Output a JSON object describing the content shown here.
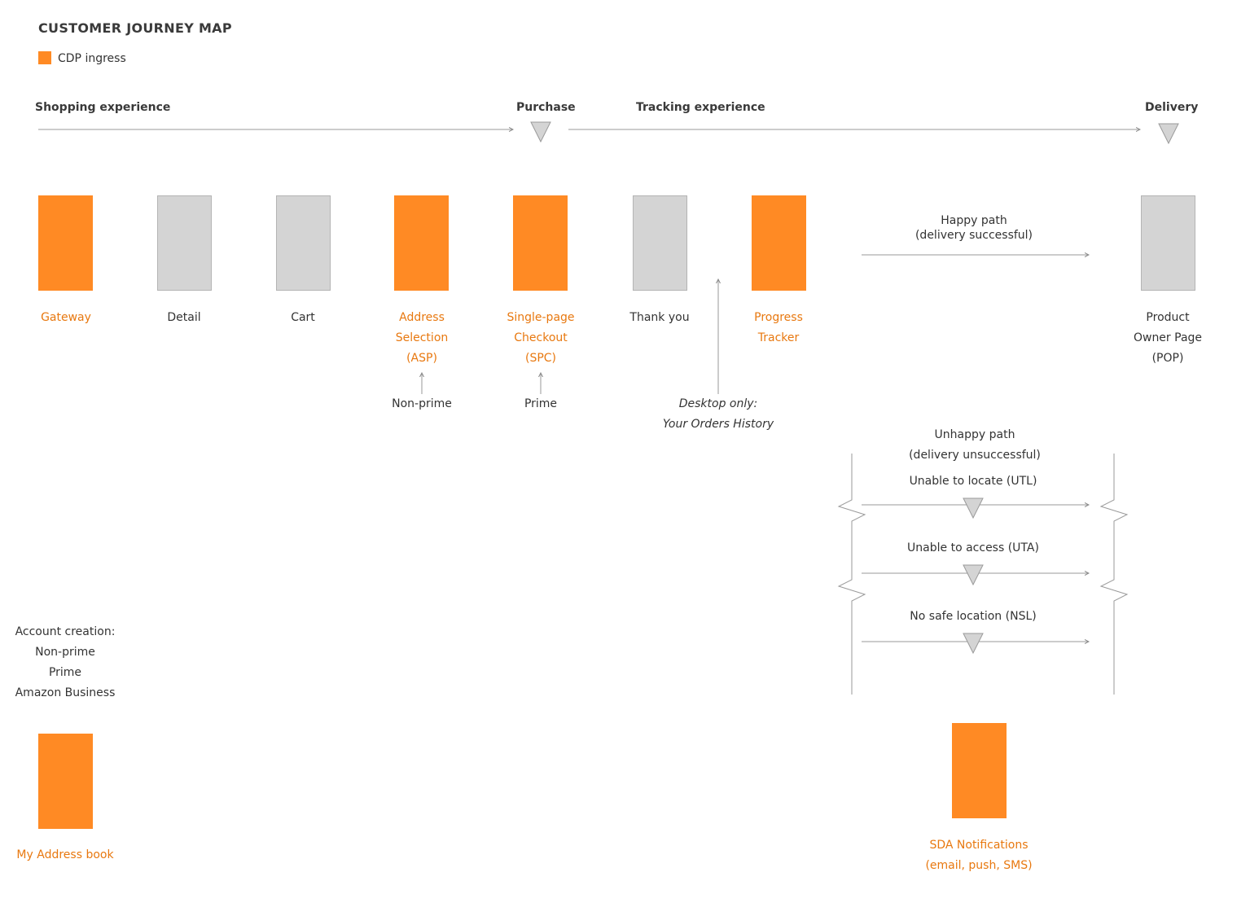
{
  "title": "CUSTOMER JOURNEY MAP",
  "legend": {
    "label": "CDP ingress",
    "color": "#FF8A24"
  },
  "phases": {
    "shopping": "Shopping experience",
    "purchase": "Purchase",
    "tracking": "Tracking experience",
    "delivery": "Delivery"
  },
  "steps": {
    "gateway": "Gateway",
    "detail": "Detail",
    "cart": "Cart",
    "asp": "Address\nSelection\n(ASP)",
    "spc": "Single-page\nCheckout\n(SPC)",
    "thank_you": "Thank you",
    "progress_tracker": "Progress\nTracker",
    "pop": "Product\nOwner Page\n(POP)"
  },
  "inputs": {
    "non_prime": "Non-prime",
    "prime": "Prime",
    "desktop": "Desktop only:\nYour Orders History"
  },
  "paths": {
    "happy": "Happy path\n(delivery successful)",
    "unhappy": "Unhappy path\n(delivery unsuccessful)",
    "utl": "Unable to locate (UTL)",
    "uta": "Unable to access (UTA)",
    "nsl": "No safe location (NSL)"
  },
  "account": {
    "text": "Account creation:\nNon-prime\nPrime\nAmazon Business",
    "address_book": "My Address book"
  },
  "sda": "SDA Notifications\n(email, push, SMS)"
}
